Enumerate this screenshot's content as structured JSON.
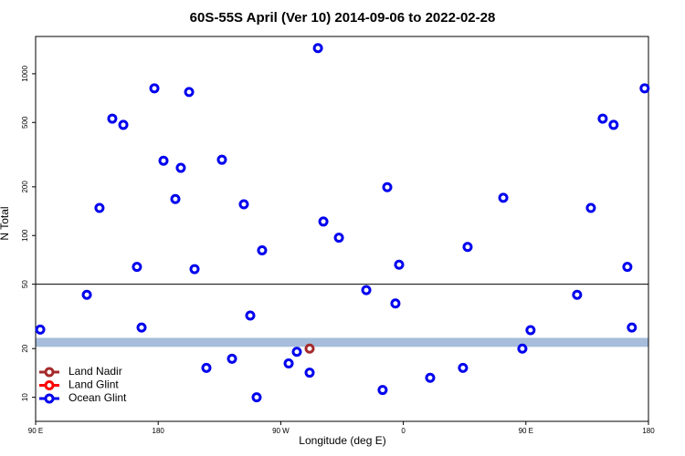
{
  "chart_data": {
    "type": "scatter",
    "title": "60S-55S April (Ver 10)   2014-09-06 to 2022-02-28",
    "x_label": "Longitude (deg E)",
    "y_label": "N Total",
    "log_y": true,
    "xlim": [
      90,
      540
    ],
    "ylim": [
      7.1,
      1700
    ],
    "xticks": [
      {
        "value": 90,
        "label": "90 E"
      },
      180,
      {
        "value": 270,
        "label": "90 W"
      },
      {
        "value": 360,
        "label": "0"
      },
      {
        "value": 450,
        "label": "90 E"
      },
      {
        "value": 540,
        "label": "180"
      }
    ],
    "yticks": [
      10,
      20,
      50,
      100,
      200,
      500,
      1000
    ],
    "hline": 50,
    "band": [
      20.5,
      23.3
    ],
    "band_color": "#a6bddb",
    "legend": "bottom-left",
    "series": [
      {
        "name": "Land Nadir",
        "color": "#a52a2a",
        "x": [
          291.2
        ],
        "values": [
          20
        ]
      },
      {
        "name": "Land Glint",
        "color": "#ff0000",
        "x": [],
        "values": []
      },
      {
        "name": "Ocean Glint",
        "color": "#0000ee",
        "x": [
          93.4,
          127.6,
          136.9,
          146.3,
          154.4,
          164.4,
          167.8,
          177.2,
          183.9,
          192.6,
          196.6,
          202.7,
          206.7,
          215.4,
          226.8,
          234.2,
          242.9,
          247.6,
          252.3,
          256.3,
          275.8,
          281.8,
          291.2,
          297.3,
          301.3,
          312.7,
          332.8,
          344.8,
          348.2,
          354.2,
          356.9,
          379.7,
          403.8,
          407.2,
          433.4,
          447.4,
          453.4,
          487.6,
          497.7,
          506.4,
          514.4,
          524.5,
          527.8,
          537.2
        ],
        "values": [
          26.2,
          43,
          148,
          528,
          483,
          64,
          27,
          813,
          290,
          168,
          262,
          771,
          62,
          15.2,
          294,
          17.3,
          156,
          32,
          10,
          81,
          16.2,
          19.1,
          14.2,
          1440,
          122,
          97,
          46,
          11.1,
          199,
          38,
          66,
          13.2,
          15.2,
          85,
          171,
          20,
          26,
          43,
          148,
          528,
          483,
          64,
          27,
          813
        ]
      }
    ]
  }
}
